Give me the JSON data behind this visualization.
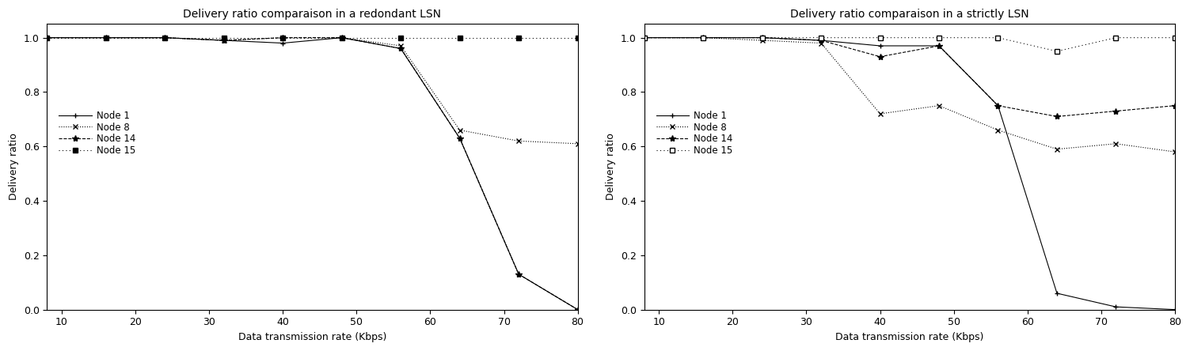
{
  "chart1": {
    "title": "Delivery ratio comparaison in a redondant LSN",
    "node1": {
      "x": [
        8,
        16,
        24,
        32,
        40,
        48,
        56,
        64,
        72,
        80
      ],
      "y": [
        1.0,
        1.0,
        1.0,
        0.99,
        0.98,
        1.0,
        0.96,
        0.63,
        0.13,
        0.0
      ]
    },
    "node8": {
      "x": [
        8,
        16,
        24,
        32,
        40,
        48,
        56,
        64,
        72,
        80
      ],
      "y": [
        1.0,
        1.0,
        1.0,
        0.99,
        1.0,
        1.0,
        0.97,
        0.66,
        0.62,
        0.61
      ]
    },
    "node14": {
      "x": [
        8,
        16,
        24,
        32,
        40,
        48,
        56,
        64,
        72,
        80
      ],
      "y": [
        1.0,
        1.0,
        1.0,
        0.99,
        1.0,
        1.0,
        0.96,
        0.63,
        0.13,
        0.0
      ]
    },
    "node15": {
      "x": [
        8,
        16,
        24,
        32,
        40,
        48,
        56,
        64,
        72,
        80
      ],
      "y": [
        1.0,
        1.0,
        1.0,
        1.0,
        1.0,
        1.0,
        1.0,
        1.0,
        1.0,
        1.0
      ]
    }
  },
  "chart2": {
    "title": "Delivery ratio comparaison in a strictly LSN",
    "node1": {
      "x": [
        8,
        16,
        24,
        32,
        40,
        48,
        56,
        64,
        72,
        80
      ],
      "y": [
        1.0,
        1.0,
        1.0,
        0.99,
        0.97,
        0.97,
        0.75,
        0.06,
        0.01,
        0.0
      ]
    },
    "node8": {
      "x": [
        8,
        16,
        24,
        32,
        40,
        48,
        56,
        64,
        72,
        80
      ],
      "y": [
        1.0,
        1.0,
        0.99,
        0.98,
        0.72,
        0.75,
        0.66,
        0.59,
        0.61,
        0.58
      ]
    },
    "node14": {
      "x": [
        8,
        16,
        24,
        32,
        40,
        48,
        56,
        64,
        72,
        80
      ],
      "y": [
        1.0,
        1.0,
        1.0,
        0.99,
        0.93,
        0.97,
        0.75,
        0.71,
        0.73,
        0.75
      ]
    },
    "node15": {
      "x": [
        8,
        16,
        24,
        32,
        40,
        48,
        56,
        64,
        72,
        80
      ],
      "y": [
        1.0,
        1.0,
        1.0,
        1.0,
        1.0,
        1.0,
        1.0,
        0.95,
        1.0,
        1.0
      ]
    }
  },
  "xlabel": "Data transmission rate (Kbps)",
  "ylabel": "Delivery ratio",
  "xlim": [
    8,
    80
  ],
  "ylim": [
    0,
    1.05
  ],
  "xticks": [
    10,
    20,
    30,
    40,
    50,
    60,
    70,
    80
  ],
  "yticks": [
    0,
    0.2,
    0.4,
    0.6,
    0.8,
    1
  ],
  "legend_labels": [
    "Node 1",
    "Node 8",
    "Node 14",
    "Node 15"
  ],
  "background_color": "#ffffff"
}
